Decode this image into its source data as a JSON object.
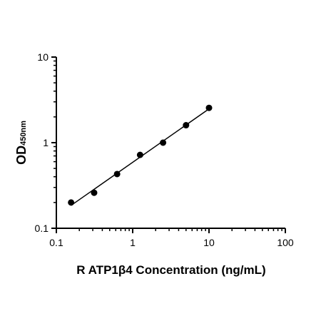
{
  "chart_data": {
    "type": "scatter",
    "title": "",
    "xlabel": "R ATP1β4 Concentration (ng/mL)",
    "ylabel": {
      "main": "OD",
      "subscript": "450nm"
    },
    "x_scale": "log",
    "y_scale": "log",
    "xlim": [
      0.1,
      100
    ],
    "ylim": [
      0.1,
      10
    ],
    "x_ticks": [
      "0.1",
      "1",
      "10",
      "100"
    ],
    "y_ticks": [
      "0.1",
      "1",
      "10"
    ],
    "grid": false,
    "series": [
      {
        "points": [
          {
            "x": 0.156,
            "y": 0.2
          },
          {
            "x": 0.3125,
            "y": 0.26
          },
          {
            "x": 0.625,
            "y": 0.43
          },
          {
            "x": 1.25,
            "y": 0.72
          },
          {
            "x": 2.5,
            "y": 1.0
          },
          {
            "x": 5,
            "y": 1.6
          },
          {
            "x": 10,
            "y": 2.55
          }
        ],
        "fit_line": true,
        "color": "#000000"
      }
    ]
  }
}
